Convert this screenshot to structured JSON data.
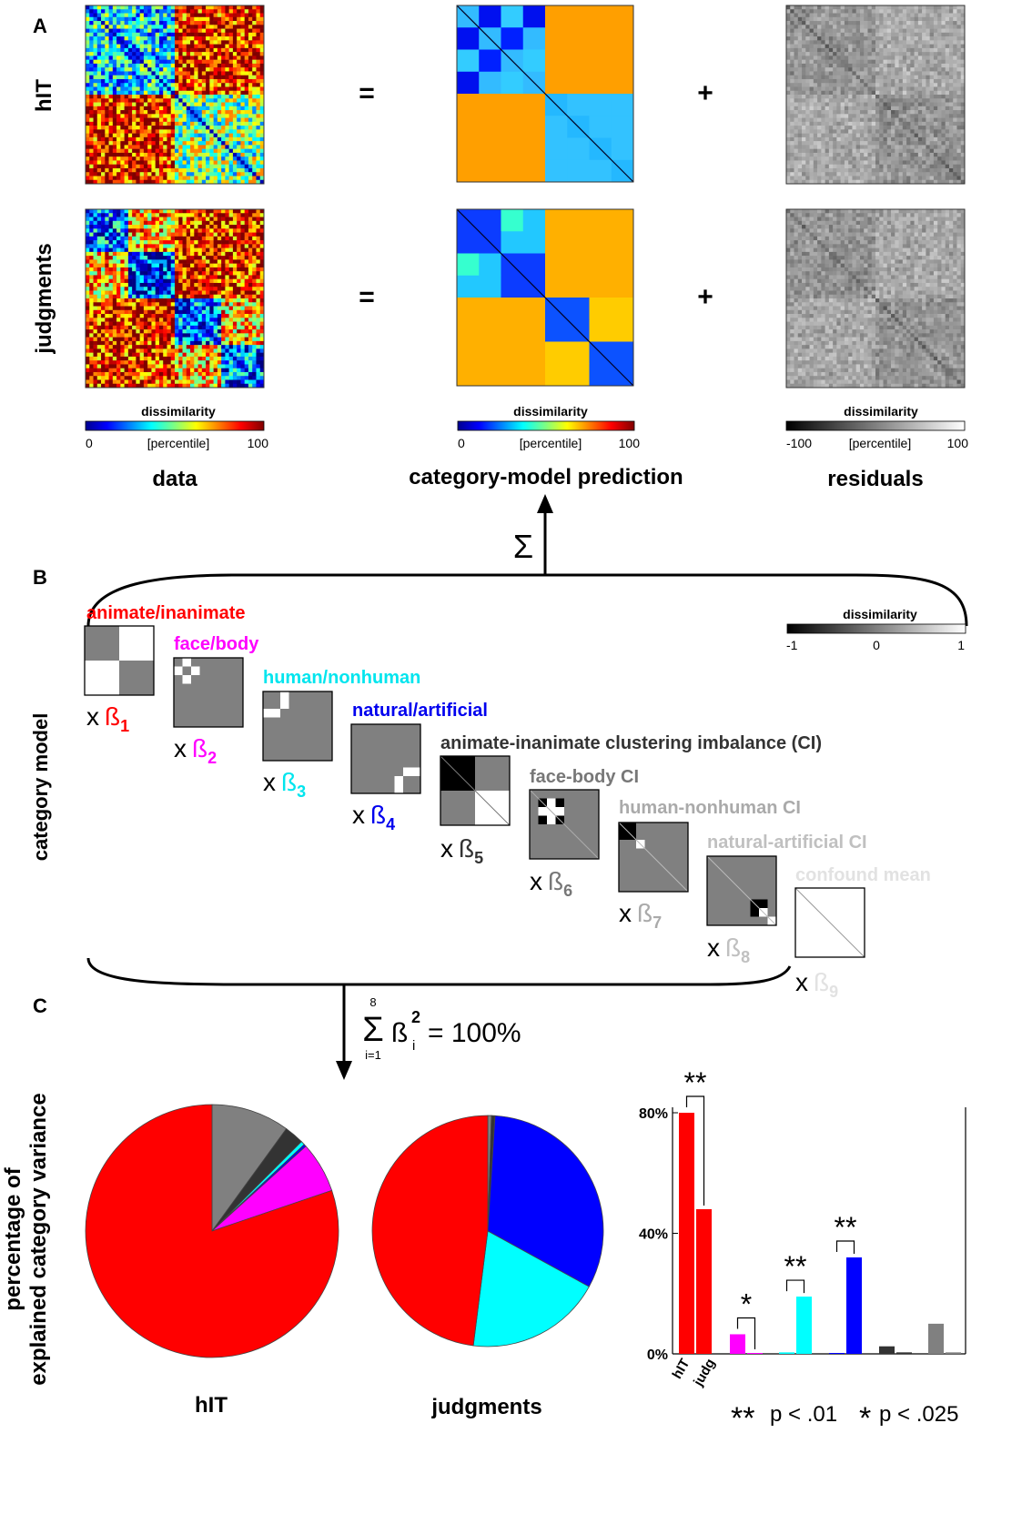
{
  "panels": {
    "a": "A",
    "b": "B",
    "c": "C"
  },
  "panel_a": {
    "row_labels": {
      "hit": "hIT",
      "judgments": "judgments"
    },
    "operators": {
      "equals": "=",
      "plus": "+"
    },
    "colorbars": {
      "data": {
        "title": "dissimilarity",
        "min": "0",
        "mid": "[percentile]",
        "max": "100"
      },
      "prediction": {
        "title": "dissimilarity",
        "min": "0",
        "mid": "[percentile]",
        "max": "100"
      },
      "residuals": {
        "title": "dissimilarity",
        "min": "-100",
        "mid": "[percentile]",
        "max": "100"
      }
    },
    "column_titles": {
      "data": "data",
      "prediction": "category-model prediction",
      "residuals": "residuals"
    },
    "sum_symbol": "Σ"
  },
  "panel_b": {
    "axis_label": "category model",
    "colorbar": {
      "title": "dissimilarity",
      "min": "-1",
      "mid": "0",
      "max": "1"
    },
    "multiplier": "x",
    "beta": "ß",
    "predictors": [
      {
        "label": "animate/inanimate",
        "subscript": "1",
        "color": "#ff0000"
      },
      {
        "label": "face/body",
        "subscript": "2",
        "color": "#ff00ff"
      },
      {
        "label": "human/nonhuman",
        "subscript": "3",
        "color": "#00e5ee"
      },
      {
        "label": "natural/artificial",
        "subscript": "4",
        "color": "#0000ee"
      },
      {
        "label": "animate-inanimate clustering imbalance (CI)",
        "subscript": "5",
        "color": "#333333"
      },
      {
        "label": "face-body CI",
        "subscript": "6",
        "color": "#777777"
      },
      {
        "label": "human-nonhuman CI",
        "subscript": "7",
        "color": "#aaaaaa"
      },
      {
        "label": "natural-artificial CI",
        "subscript": "8",
        "color": "#c0c0c0"
      },
      {
        "label": "confound mean",
        "subscript": "9",
        "color": "#e2e2e2"
      }
    ]
  },
  "panel_c": {
    "equation": {
      "sum": "Σ",
      "upper": "8",
      "lower": "i=1",
      "beta": "ß",
      "sup": "2",
      "sub": "i",
      "rhs": "= 100%"
    },
    "y_axis_label_line1": "percentage of",
    "y_axis_label_line2": "explained category variance",
    "pie_labels": {
      "hit": "hIT",
      "judgments": "judgments"
    },
    "significance": {
      "double_star": "**",
      "double_text": "p < .01",
      "single_star": "*",
      "single_text": "p < .025"
    },
    "colors": {
      "red": "#ff0000",
      "magenta": "#ff00ff",
      "cyan": "#00ffff",
      "blue": "#0000ff",
      "dark": "#333333",
      "gray": "#808080"
    }
  },
  "chart_data": [
    {
      "type": "pie",
      "title": "hIT",
      "slices": [
        {
          "predictor": "confound mean",
          "value": 10,
          "color": "#808080"
        },
        {
          "predictor": "animate-inanimate CI",
          "value": 2.5,
          "color": "#333333"
        },
        {
          "predictor": "human/nonhuman",
          "value": 0.5,
          "color": "#00ffff"
        },
        {
          "predictor": "natural/artificial",
          "value": 0.3,
          "color": "#0000ff"
        },
        {
          "predictor": "face/body",
          "value": 6.5,
          "color": "#ff00ff"
        },
        {
          "predictor": "animate/inanimate",
          "value": 80.2,
          "color": "#ff0000"
        }
      ]
    },
    {
      "type": "pie",
      "title": "judgments",
      "slices": [
        {
          "predictor": "confound mean",
          "value": 0.5,
          "color": "#808080"
        },
        {
          "predictor": "animate-inanimate CI",
          "value": 0.5,
          "color": "#333333"
        },
        {
          "predictor": "natural/artificial",
          "value": 32,
          "color": "#0000ff"
        },
        {
          "predictor": "human/nonhuman",
          "value": 19,
          "color": "#00ffff"
        },
        {
          "predictor": "animate/inanimate",
          "value": 48,
          "color": "#ff0000"
        }
      ]
    },
    {
      "type": "bar",
      "categories": [
        "animate/inanimate",
        "face/body",
        "human/nonhuman",
        "natural/artificial",
        "animate-inanimate CI",
        "confound mean"
      ],
      "tick_labels": [
        "hIT",
        "judg"
      ],
      "yticks": [
        "0%",
        "40%",
        "80%"
      ],
      "ylim": [
        0,
        80
      ],
      "series": [
        {
          "name": "hIT",
          "values": [
            80,
            6.5,
            0.5,
            0.3,
            2.5,
            10
          ]
        },
        {
          "name": "judg",
          "values": [
            48,
            0.3,
            19,
            32,
            0.5,
            0.5
          ]
        }
      ],
      "colors": [
        "#ff0000",
        "#ff00ff",
        "#00ffff",
        "#0000ff",
        "#333333",
        "#808080"
      ],
      "significance": [
        "**",
        "*",
        "**",
        "**",
        "",
        ""
      ]
    }
  ]
}
